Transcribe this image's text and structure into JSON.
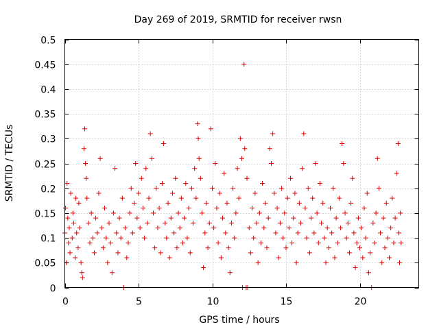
{
  "chart_data": {
    "type": "scatter",
    "title": "Day 269 of 2019, SRMTID for receiver rwsn",
    "xlabel": "GPS time / hours",
    "ylabel": "SRMTID / TECUs",
    "xlim": [
      0,
      24
    ],
    "ylim": [
      0,
      0.5
    ],
    "x_ticks": [
      0,
      5,
      10,
      15,
      20
    ],
    "x_tick_labels": [
      "0",
      "5",
      "10",
      "15",
      "20"
    ],
    "y_ticks": [
      0,
      0.05,
      0.1,
      0.15,
      0.2,
      0.25,
      0.3,
      0.35,
      0.4,
      0.45,
      0.5
    ],
    "y_tick_labels": [
      "0",
      "0.05",
      "0.1",
      "0.15",
      "0.2",
      "0.25",
      "0.3",
      "0.35",
      "0.4",
      "0.45",
      "0.5"
    ],
    "grid": true,
    "marker": "+",
    "color": "#e00000",
    "x_data_range": [
      0,
      22.8
    ],
    "series": [
      {
        "name": "rwsn",
        "points": [
          [
            0.0,
            0.11
          ],
          [
            0.05,
            0.16
          ],
          [
            0.1,
            0.05
          ],
          [
            0.15,
            0.21
          ],
          [
            0.2,
            0.14
          ],
          [
            0.25,
            0.09
          ],
          [
            0.3,
            0.12
          ],
          [
            0.35,
            0.07
          ],
          [
            0.4,
            0.19
          ],
          [
            0.5,
            0.1
          ],
          [
            0.55,
            0.15
          ],
          [
            0.6,
            0.13
          ],
          [
            0.7,
            0.06
          ],
          [
            0.75,
            0.18
          ],
          [
            0.8,
            0.11
          ],
          [
            0.9,
            0.08
          ],
          [
            0.95,
            0.17
          ],
          [
            1.0,
            0.12
          ],
          [
            1.1,
            0.05
          ],
          [
            1.15,
            0.03
          ],
          [
            1.2,
            0.02
          ],
          [
            1.3,
            0.28
          ],
          [
            1.35,
            0.32
          ],
          [
            1.4,
            0.25
          ],
          [
            1.45,
            0.22
          ],
          [
            1.5,
            0.18
          ],
          [
            1.6,
            0.13
          ],
          [
            1.7,
            0.09
          ],
          [
            1.8,
            0.15
          ],
          [
            1.9,
            0.1
          ],
          [
            2.0,
            0.07
          ],
          [
            2.1,
            0.14
          ],
          [
            2.2,
            0.11
          ],
          [
            2.3,
            0.19
          ],
          [
            2.4,
            0.26
          ],
          [
            2.5,
            0.12
          ],
          [
            2.6,
            0.08
          ],
          [
            2.7,
            0.16
          ],
          [
            2.8,
            0.1
          ],
          [
            2.9,
            0.05
          ],
          [
            3.0,
            0.13
          ],
          [
            3.1,
            0.09
          ],
          [
            3.2,
            0.03
          ],
          [
            3.3,
            0.15
          ],
          [
            3.4,
            0.24
          ],
          [
            3.5,
            0.11
          ],
          [
            3.6,
            0.07
          ],
          [
            3.7,
            0.14
          ],
          [
            3.8,
            0.1
          ],
          [
            3.9,
            0.18
          ],
          [
            4.0,
            0.0
          ],
          [
            4.1,
            0.12
          ],
          [
            4.2,
            0.06
          ],
          [
            4.3,
            0.09
          ],
          [
            4.4,
            0.15
          ],
          [
            4.5,
            0.2
          ],
          [
            4.6,
            0.11
          ],
          [
            4.7,
            0.17
          ],
          [
            4.8,
            0.25
          ],
          [
            4.9,
            0.14
          ],
          [
            5.0,
            0.19
          ],
          [
            5.1,
            0.12
          ],
          [
            5.2,
            0.22
          ],
          [
            5.3,
            0.16
          ],
          [
            5.4,
            0.1
          ],
          [
            5.5,
            0.24
          ],
          [
            5.6,
            0.13
          ],
          [
            5.7,
            0.18
          ],
          [
            5.8,
            0.31
          ],
          [
            5.9,
            0.26
          ],
          [
            6.0,
            0.15
          ],
          [
            6.1,
            0.08
          ],
          [
            6.2,
            0.2
          ],
          [
            6.3,
            0.12
          ],
          [
            6.4,
            0.16
          ],
          [
            6.5,
            0.07
          ],
          [
            6.6,
            0.21
          ],
          [
            6.7,
            0.29
          ],
          [
            6.8,
            0.13
          ],
          [
            6.9,
            0.1
          ],
          [
            7.0,
            0.17
          ],
          [
            7.1,
            0.06
          ],
          [
            7.2,
            0.14
          ],
          [
            7.3,
            0.19
          ],
          [
            7.4,
            0.11
          ],
          [
            7.5,
            0.22
          ],
          [
            7.6,
            0.08
          ],
          [
            7.7,
            0.15
          ],
          [
            7.8,
            0.12
          ],
          [
            7.9,
            0.18
          ],
          [
            8.0,
            0.09
          ],
          [
            8.1,
            0.14
          ],
          [
            8.2,
            0.21
          ],
          [
            8.3,
            0.1
          ],
          [
            8.4,
            0.16
          ],
          [
            8.5,
            0.07
          ],
          [
            8.6,
            0.2
          ],
          [
            8.7,
            0.13
          ],
          [
            8.8,
            0.24
          ],
          [
            8.9,
            0.18
          ],
          [
            9.0,
            0.33
          ],
          [
            9.05,
            0.3
          ],
          [
            9.1,
            0.26
          ],
          [
            9.2,
            0.22
          ],
          [
            9.3,
            0.15
          ],
          [
            9.4,
            0.04
          ],
          [
            9.5,
            0.11
          ],
          [
            9.6,
            0.17
          ],
          [
            9.7,
            0.08
          ],
          [
            9.8,
            0.13
          ],
          [
            9.9,
            0.32
          ],
          [
            10.0,
            0.2
          ],
          [
            10.1,
            0.12
          ],
          [
            10.2,
            0.25
          ],
          [
            10.3,
            0.16
          ],
          [
            10.4,
            0.09
          ],
          [
            10.5,
            0.19
          ],
          [
            10.6,
            0.06
          ],
          [
            10.7,
            0.14
          ],
          [
            10.8,
            0.23
          ],
          [
            10.9,
            0.11
          ],
          [
            11.0,
            0.17
          ],
          [
            11.1,
            0.08
          ],
          [
            11.2,
            0.03
          ],
          [
            11.3,
            0.13
          ],
          [
            11.4,
            0.2
          ],
          [
            11.5,
            0.1
          ],
          [
            11.6,
            0.15
          ],
          [
            11.7,
            0.24
          ],
          [
            11.8,
            0.18
          ],
          [
            11.9,
            0.3
          ],
          [
            12.0,
            0.26
          ],
          [
            12.05,
            0.0
          ],
          [
            12.15,
            0.45
          ],
          [
            12.2,
            0.28
          ],
          [
            12.3,
            0.0
          ],
          [
            12.35,
            0.22
          ],
          [
            12.4,
            0.0
          ],
          [
            12.5,
            0.12
          ],
          [
            12.6,
            0.07
          ],
          [
            12.7,
            0.16
          ],
          [
            12.8,
            0.1
          ],
          [
            12.9,
            0.19
          ],
          [
            13.0,
            0.13
          ],
          [
            13.1,
            0.05
          ],
          [
            13.2,
            0.15
          ],
          [
            13.3,
            0.09
          ],
          [
            13.4,
            0.21
          ],
          [
            13.5,
            0.12
          ],
          [
            13.6,
            0.17
          ],
          [
            13.7,
            0.08
          ],
          [
            13.8,
            0.14
          ],
          [
            13.9,
            0.28
          ],
          [
            14.0,
            0.25
          ],
          [
            14.1,
            0.31
          ],
          [
            14.2,
            0.19
          ],
          [
            14.3,
            0.11
          ],
          [
            14.4,
            0.16
          ],
          [
            14.5,
            0.06
          ],
          [
            14.6,
            0.13
          ],
          [
            14.7,
            0.2
          ],
          [
            14.8,
            0.1
          ],
          [
            14.9,
            0.15
          ],
          [
            15.0,
            0.08
          ],
          [
            15.1,
            0.18
          ],
          [
            15.2,
            0.12
          ],
          [
            15.3,
            0.22
          ],
          [
            15.4,
            0.09
          ],
          [
            15.5,
            0.14
          ],
          [
            15.6,
            0.19
          ],
          [
            15.7,
            0.05
          ],
          [
            15.8,
            0.11
          ],
          [
            15.9,
            0.17
          ],
          [
            16.0,
            0.13
          ],
          [
            16.1,
            0.24
          ],
          [
            16.2,
            0.31
          ],
          [
            16.3,
            0.16
          ],
          [
            16.4,
            0.1
          ],
          [
            16.5,
            0.2
          ],
          [
            16.6,
            0.07
          ],
          [
            16.7,
            0.14
          ],
          [
            16.8,
            0.18
          ],
          [
            16.9,
            0.11
          ],
          [
            17.0,
            0.25
          ],
          [
            17.1,
            0.15
          ],
          [
            17.2,
            0.09
          ],
          [
            17.3,
            0.21
          ],
          [
            17.4,
            0.13
          ],
          [
            17.5,
            0.17
          ],
          [
            17.6,
            0.1
          ],
          [
            17.7,
            0.05
          ],
          [
            17.8,
            0.12
          ],
          [
            17.9,
            0.08
          ],
          [
            18.0,
            0.16
          ],
          [
            18.1,
            0.11
          ],
          [
            18.2,
            0.2
          ],
          [
            18.3,
            0.06
          ],
          [
            18.4,
            0.14
          ],
          [
            18.5,
            0.09
          ],
          [
            18.6,
            0.18
          ],
          [
            18.7,
            0.12
          ],
          [
            18.8,
            0.29
          ],
          [
            18.9,
            0.25
          ],
          [
            19.0,
            0.15
          ],
          [
            19.1,
            0.1
          ],
          [
            19.2,
            0.13
          ],
          [
            19.3,
            0.07
          ],
          [
            19.4,
            0.17
          ],
          [
            19.5,
            0.22
          ],
          [
            19.6,
            0.11
          ],
          [
            19.7,
            0.04
          ],
          [
            19.8,
            0.09
          ],
          [
            19.9,
            0.14
          ],
          [
            20.0,
            0.08
          ],
          [
            20.1,
            0.12
          ],
          [
            20.2,
            0.06
          ],
          [
            20.3,
            0.16
          ],
          [
            20.4,
            0.1
          ],
          [
            20.5,
            0.19
          ],
          [
            20.6,
            0.03
          ],
          [
            20.7,
            0.07
          ],
          [
            20.8,
            0.0
          ],
          [
            20.9,
            0.13
          ],
          [
            21.0,
            0.09
          ],
          [
            21.1,
            0.15
          ],
          [
            21.2,
            0.26
          ],
          [
            21.3,
            0.2
          ],
          [
            21.4,
            0.11
          ],
          [
            21.5,
            0.05
          ],
          [
            21.6,
            0.14
          ],
          [
            21.7,
            0.08
          ],
          [
            21.8,
            0.17
          ],
          [
            21.9,
            0.1
          ],
          [
            22.0,
            0.06
          ],
          [
            22.1,
            0.12
          ],
          [
            22.2,
            0.18
          ],
          [
            22.3,
            0.09
          ],
          [
            22.4,
            0.14
          ],
          [
            22.5,
            0.23
          ],
          [
            22.6,
            0.29
          ],
          [
            22.65,
            0.11
          ],
          [
            22.7,
            0.05
          ],
          [
            22.75,
            0.15
          ],
          [
            22.8,
            0.09
          ]
        ]
      }
    ]
  }
}
